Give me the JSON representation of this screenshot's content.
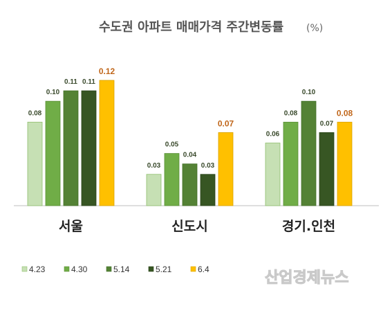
{
  "watermark": "산업경제뉴스",
  "chart_data": {
    "type": "bar",
    "title": "수도권 아파트 매매가격 주간변동률",
    "unit": "(%)",
    "categories": [
      "서울",
      "신도시",
      "경기.인천"
    ],
    "series": [
      {
        "name": "4.23",
        "color": "#c6e0b4",
        "stroke": "#8fbf6e",
        "values": [
          0.08,
          0.03,
          0.06
        ]
      },
      {
        "name": "4.30",
        "color": "#70ad47",
        "stroke": "#5a8f37",
        "values": [
          0.1,
          0.05,
          0.08
        ]
      },
      {
        "name": "5.14",
        "color": "#548235",
        "stroke": "#44702a",
        "values": [
          0.11,
          0.04,
          0.1
        ]
      },
      {
        "name": "5.21",
        "color": "#375623",
        "stroke": "#2a4419",
        "values": [
          0.11,
          0.03,
          0.07
        ]
      },
      {
        "name": "6.4",
        "color": "#ffc000",
        "stroke": "#d9a300",
        "values": [
          0.12,
          0.07,
          0.08
        ]
      }
    ],
    "value_labels": [
      [
        "0.08",
        "0.10",
        "0.11",
        "0.11",
        "0.12"
      ],
      [
        "0.03",
        "0.05",
        "0.04",
        "0.03",
        "0.07"
      ],
      [
        "0.06",
        "0.08",
        "0.10",
        "0.07",
        "0.08"
      ]
    ],
    "ylim": [
      0,
      0.12
    ],
    "grid": false,
    "legend": "bottom-left"
  }
}
